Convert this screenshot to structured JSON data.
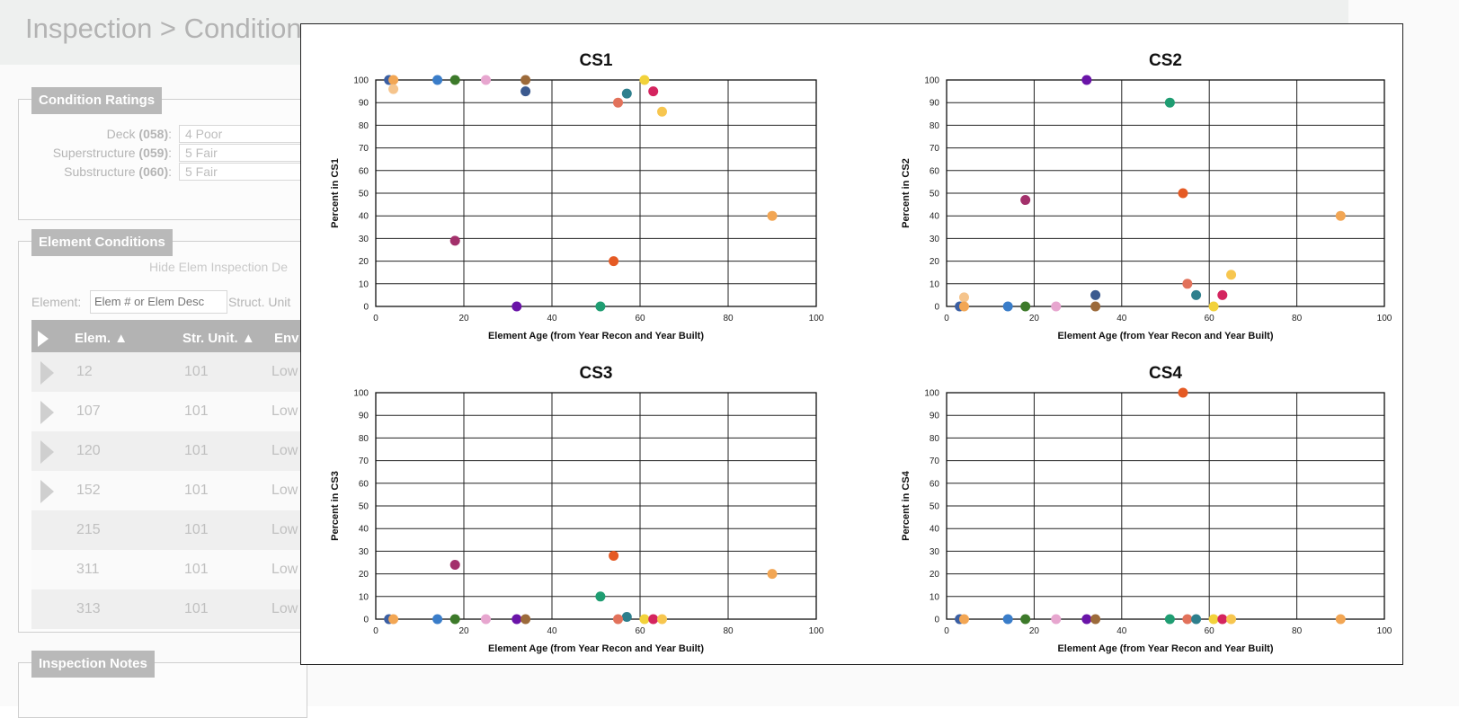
{
  "page": {
    "title": "Inspection > Condition"
  },
  "condition_ratings": {
    "tab_label": "Condition Ratings",
    "rows": [
      {
        "label": "Deck",
        "code": "(058)",
        "value": "4 Poor"
      },
      {
        "label": "Superstructure",
        "code": "(059)",
        "value": "5 Fair"
      },
      {
        "label": "Substructure",
        "code": "(060)",
        "value": "5 Fair"
      }
    ]
  },
  "element_conditions": {
    "tab_label": "Element Conditions",
    "hide_link": "Hide Elem Inspection De",
    "filter_label": "Element:",
    "filter_placeholder": "Elem # or Elem Desc",
    "struct_unit_label": "Struct. Unit",
    "columns": [
      "Elem.",
      "Str. Unit.",
      "Env"
    ],
    "rows": [
      {
        "elem": "12",
        "unit": "101",
        "env": "Low",
        "expandable": true
      },
      {
        "elem": "107",
        "unit": "101",
        "env": "Low",
        "expandable": true
      },
      {
        "elem": "120",
        "unit": "101",
        "env": "Low",
        "expandable": true
      },
      {
        "elem": "152",
        "unit": "101",
        "env": "Low",
        "expandable": true
      },
      {
        "elem": "215",
        "unit": "101",
        "env": "Low",
        "expandable": false
      },
      {
        "elem": "311",
        "unit": "101",
        "env": "Low",
        "expandable": false
      },
      {
        "elem": "313",
        "unit": "101",
        "env": "Low",
        "expandable": false
      }
    ]
  },
  "inspection_notes": {
    "tab_label": "Inspection Notes"
  },
  "chart_data": [
    {
      "type": "scatter",
      "title": "CS1",
      "xlabel": "Element Age (from Year Recon and Year Built)",
      "ylabel": "Percent in CS1",
      "xlim": [
        0,
        100
      ],
      "ylim": [
        0,
        100
      ],
      "xticks": [
        0,
        20,
        40,
        60,
        80,
        100
      ],
      "yticks": [
        0,
        10,
        20,
        30,
        40,
        50,
        60,
        70,
        80,
        90,
        100
      ],
      "grid": true,
      "points": [
        {
          "x": 3,
          "y": 100,
          "color": "#3b5fa3"
        },
        {
          "x": 4,
          "y": 100,
          "color": "#f2a654"
        },
        {
          "x": 4,
          "y": 96,
          "color": "#f5c48c"
        },
        {
          "x": 14,
          "y": 100,
          "color": "#3a7dc9"
        },
        {
          "x": 18,
          "y": 100,
          "color": "#3d7a2a"
        },
        {
          "x": 25,
          "y": 100,
          "color": "#e7a6cf"
        },
        {
          "x": 34,
          "y": 100,
          "color": "#9c6a3a"
        },
        {
          "x": 34,
          "y": 95,
          "color": "#3b5a8f"
        },
        {
          "x": 55,
          "y": 90,
          "color": "#e2725b"
        },
        {
          "x": 57,
          "y": 94,
          "color": "#2e7f8d"
        },
        {
          "x": 61,
          "y": 100,
          "color": "#f2d23b"
        },
        {
          "x": 63,
          "y": 95,
          "color": "#d4245f"
        },
        {
          "x": 65,
          "y": 86,
          "color": "#f7c64f"
        },
        {
          "x": 90,
          "y": 40,
          "color": "#f2a654"
        },
        {
          "x": 18,
          "y": 29,
          "color": "#a3306b"
        },
        {
          "x": 54,
          "y": 20,
          "color": "#e55a24"
        },
        {
          "x": 32,
          "y": 0,
          "color": "#6a14a8"
        },
        {
          "x": 51,
          "y": 0,
          "color": "#1f9d72"
        }
      ]
    },
    {
      "type": "scatter",
      "title": "CS2",
      "xlabel": "Element Age (from Year Recon and Year Built)",
      "ylabel": "Percent in CS2",
      "xlim": [
        0,
        100
      ],
      "ylim": [
        0,
        100
      ],
      "xticks": [
        0,
        20,
        40,
        60,
        80,
        100
      ],
      "yticks": [
        0,
        10,
        20,
        30,
        40,
        50,
        60,
        70,
        80,
        90,
        100
      ],
      "grid": true,
      "points": [
        {
          "x": 32,
          "y": 100,
          "color": "#6a14a8"
        },
        {
          "x": 51,
          "y": 90,
          "color": "#1f9d72"
        },
        {
          "x": 18,
          "y": 47,
          "color": "#a3306b"
        },
        {
          "x": 54,
          "y": 50,
          "color": "#e55a24"
        },
        {
          "x": 90,
          "y": 40,
          "color": "#f2a654"
        },
        {
          "x": 65,
          "y": 14,
          "color": "#f7c64f"
        },
        {
          "x": 55,
          "y": 10,
          "color": "#e2725b"
        },
        {
          "x": 57,
          "y": 5,
          "color": "#2e7f8d"
        },
        {
          "x": 63,
          "y": 5,
          "color": "#d4245f"
        },
        {
          "x": 34,
          "y": 5,
          "color": "#3b5a8f"
        },
        {
          "x": 4,
          "y": 4,
          "color": "#f5c48c"
        },
        {
          "x": 3,
          "y": 0,
          "color": "#3b5fa3"
        },
        {
          "x": 4,
          "y": 0,
          "color": "#f2a654"
        },
        {
          "x": 14,
          "y": 0,
          "color": "#3a7dc9"
        },
        {
          "x": 18,
          "y": 0,
          "color": "#3d7a2a"
        },
        {
          "x": 25,
          "y": 0,
          "color": "#e7a6cf"
        },
        {
          "x": 34,
          "y": 0,
          "color": "#9c6a3a"
        },
        {
          "x": 61,
          "y": 0,
          "color": "#f2d23b"
        }
      ]
    },
    {
      "type": "scatter",
      "title": "CS3",
      "xlabel": "Element Age (from Year Recon and Year Built)",
      "ylabel": "Percent in CS3",
      "xlim": [
        0,
        100
      ],
      "ylim": [
        0,
        100
      ],
      "xticks": [
        0,
        20,
        40,
        60,
        80,
        100
      ],
      "yticks": [
        0,
        10,
        20,
        30,
        40,
        50,
        60,
        70,
        80,
        90,
        100
      ],
      "grid": true,
      "points": [
        {
          "x": 18,
          "y": 24,
          "color": "#a3306b"
        },
        {
          "x": 54,
          "y": 28,
          "color": "#e55a24"
        },
        {
          "x": 90,
          "y": 20,
          "color": "#f2a654"
        },
        {
          "x": 51,
          "y": 10,
          "color": "#1f9d72"
        },
        {
          "x": 57,
          "y": 1,
          "color": "#2e7f8d"
        },
        {
          "x": 3,
          "y": 0,
          "color": "#3b5fa3"
        },
        {
          "x": 4,
          "y": 0,
          "color": "#f2a654"
        },
        {
          "x": 14,
          "y": 0,
          "color": "#3a7dc9"
        },
        {
          "x": 18,
          "y": 0,
          "color": "#3d7a2a"
        },
        {
          "x": 25,
          "y": 0,
          "color": "#e7a6cf"
        },
        {
          "x": 32,
          "y": 0,
          "color": "#6a14a8"
        },
        {
          "x": 34,
          "y": 0,
          "color": "#9c6a3a"
        },
        {
          "x": 55,
          "y": 0,
          "color": "#e2725b"
        },
        {
          "x": 61,
          "y": 0,
          "color": "#f2d23b"
        },
        {
          "x": 63,
          "y": 0,
          "color": "#d4245f"
        },
        {
          "x": 65,
          "y": 0,
          "color": "#f7c64f"
        }
      ]
    },
    {
      "type": "scatter",
      "title": "CS4",
      "xlabel": "Element Age (from Year Recon and Year Built)",
      "ylabel": "Percent in CS4",
      "xlim": [
        0,
        100
      ],
      "ylim": [
        0,
        100
      ],
      "xticks": [
        0,
        20,
        40,
        60,
        80,
        100
      ],
      "yticks": [
        0,
        10,
        20,
        30,
        40,
        50,
        60,
        70,
        80,
        90,
        100
      ],
      "grid": true,
      "points": [
        {
          "x": 54,
          "y": 100,
          "color": "#e55a24"
        },
        {
          "x": 3,
          "y": 0,
          "color": "#3b5fa3"
        },
        {
          "x": 4,
          "y": 0,
          "color": "#f2a654"
        },
        {
          "x": 14,
          "y": 0,
          "color": "#3a7dc9"
        },
        {
          "x": 18,
          "y": 0,
          "color": "#3d7a2a"
        },
        {
          "x": 25,
          "y": 0,
          "color": "#e7a6cf"
        },
        {
          "x": 32,
          "y": 0,
          "color": "#6a14a8"
        },
        {
          "x": 34,
          "y": 0,
          "color": "#9c6a3a"
        },
        {
          "x": 51,
          "y": 0,
          "color": "#1f9d72"
        },
        {
          "x": 55,
          "y": 0,
          "color": "#e2725b"
        },
        {
          "x": 57,
          "y": 0,
          "color": "#2e7f8d"
        },
        {
          "x": 61,
          "y": 0,
          "color": "#f2d23b"
        },
        {
          "x": 63,
          "y": 0,
          "color": "#d4245f"
        },
        {
          "x": 65,
          "y": 0,
          "color": "#f7c64f"
        },
        {
          "x": 90,
          "y": 0,
          "color": "#f2a654"
        }
      ]
    }
  ]
}
